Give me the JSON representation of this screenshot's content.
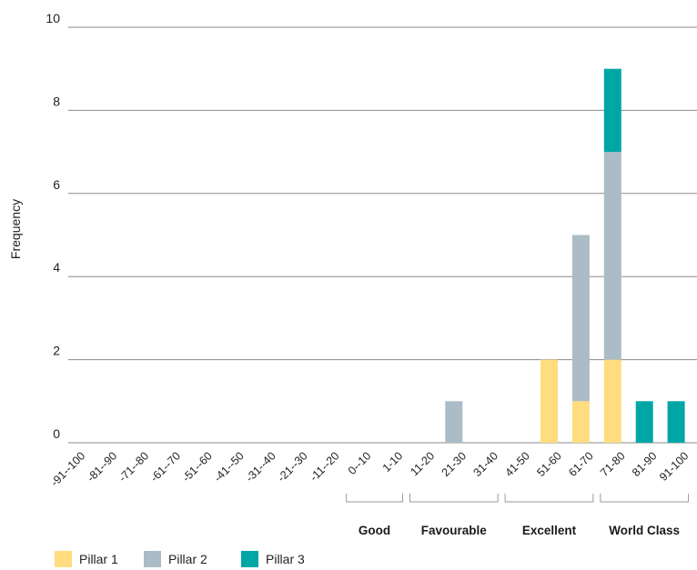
{
  "chart_data": {
    "type": "bar",
    "stacked": true,
    "categories": [
      "-91--100",
      "-81--90",
      "-71--80",
      "-61--70",
      "-51--60",
      "-41--50",
      "-31--40",
      "-21--30",
      "-11--20",
      "0--10",
      "1-10",
      "11-20",
      "21-30",
      "31-40",
      "41-50",
      "51-60",
      "61-70",
      "71-80",
      "81-90",
      "91-100"
    ],
    "series": [
      {
        "name": "Pillar 1",
        "color": "#FFDC7F",
        "values": [
          0,
          0,
          0,
          0,
          0,
          0,
          0,
          0,
          0,
          0,
          0,
          0,
          0,
          0,
          0,
          2,
          1,
          2,
          0,
          0
        ]
      },
      {
        "name": "Pillar 2",
        "color": "#ACBCC6",
        "values": [
          0,
          0,
          0,
          0,
          0,
          0,
          0,
          0,
          0,
          0,
          0,
          0,
          1,
          0,
          0,
          0,
          4,
          5,
          0,
          0
        ]
      },
      {
        "name": "Pillar 3",
        "color": "#00A6A6",
        "values": [
          0,
          0,
          0,
          0,
          0,
          0,
          0,
          0,
          0,
          0,
          0,
          0,
          0,
          0,
          0,
          0,
          0,
          2,
          1,
          1
        ]
      }
    ],
    "ylabel": "Frequency",
    "xlabel": "",
    "ylim": [
      0,
      10
    ],
    "yticks": [
      0,
      2,
      4,
      6,
      8,
      10
    ],
    "grid": true,
    "legend_position": "bottom-left",
    "groups": [
      {
        "label": "Good",
        "from": "0--10",
        "to": "1-10"
      },
      {
        "label": "Favourable",
        "from": "11-20",
        "to": "31-40"
      },
      {
        "label": "Excellent",
        "from": "41-50",
        "to": "61-70"
      },
      {
        "label": "World Class",
        "from": "71-80",
        "to": "91-100"
      }
    ]
  }
}
